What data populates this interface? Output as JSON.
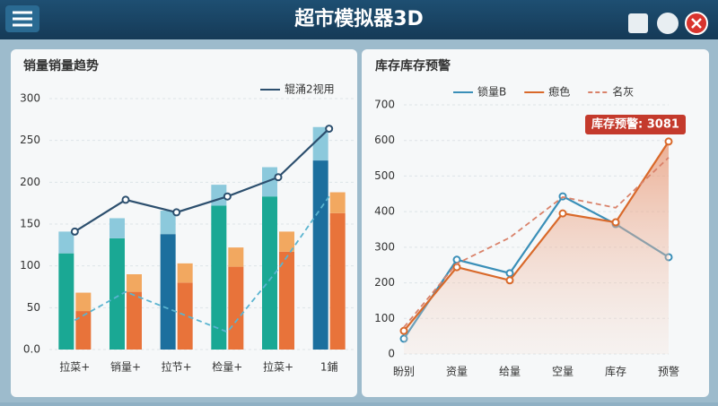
{
  "header": {
    "title": "超市模拟器3D"
  },
  "chart_data": [
    {
      "type": "bar",
      "title": "销量销量趋势",
      "categories": [
        "拉菜+",
        "销量+",
        "拉节+",
        "检量+",
        "拉菜+",
        "1鋪"
      ],
      "series": [
        {
          "kind": "bar",
          "group": 0,
          "colors": [
            "#1aa894",
            "#1aa894",
            "#1c6f9e",
            "#1aa894",
            "#1aa894",
            "#1c6f9e"
          ],
          "values": [
            115,
            133,
            138,
            172,
            183,
            226
          ]
        },
        {
          "kind": "bar",
          "group": 0,
          "color": "#8cc9dc",
          "values": [
            26,
            24,
            28,
            25,
            35,
            40
          ]
        },
        {
          "kind": "bar",
          "group": 1,
          "color": "#e8733a",
          "values": [
            46,
            69,
            80,
            99,
            117,
            163
          ]
        },
        {
          "kind": "bar",
          "group": 1,
          "color": "#f2a860",
          "values": [
            22,
            21,
            23,
            23,
            24,
            25
          ]
        },
        {
          "kind": "line",
          "name": "辊涌2视用",
          "color": "#2c4f6e",
          "values": [
            141,
            179,
            164,
            183,
            206,
            264
          ]
        },
        {
          "kind": "line",
          "dashed": true,
          "color": "#5ab4d0",
          "values": [
            35,
            69,
            45,
            21,
            96,
            183
          ]
        }
      ],
      "ylim": [
        0,
        300
      ],
      "yticks": [
        {
          "value": 0,
          "label": "0.0"
        },
        50,
        100,
        150,
        200,
        250,
        300
      ],
      "grid": true
    },
    {
      "type": "line",
      "title": "库存库存预警",
      "categories": [
        "盼别",
        "资量",
        "给量",
        "空量",
        "库存",
        "预警"
      ],
      "series": [
        {
          "name": "锁量B",
          "color": "#3a8fb8",
          "values": [
            43,
            265,
            227,
            443,
            365,
            272
          ]
        },
        {
          "name": "瘛色",
          "color": "#d9692a",
          "area": true,
          "values": [
            65,
            244,
            207,
            395,
            370,
            597
          ]
        },
        {
          "name": "名灰",
          "color": "#d9826a",
          "dashed": true,
          "values": [
            75,
            254,
            327,
            441,
            411,
            552
          ]
        }
      ],
      "annotation": "库存预警: 3081",
      "ylim": [
        0,
        700
      ],
      "yticks": [
        0,
        100,
        200,
        300,
        400,
        500,
        600,
        700
      ],
      "grid": true
    }
  ]
}
